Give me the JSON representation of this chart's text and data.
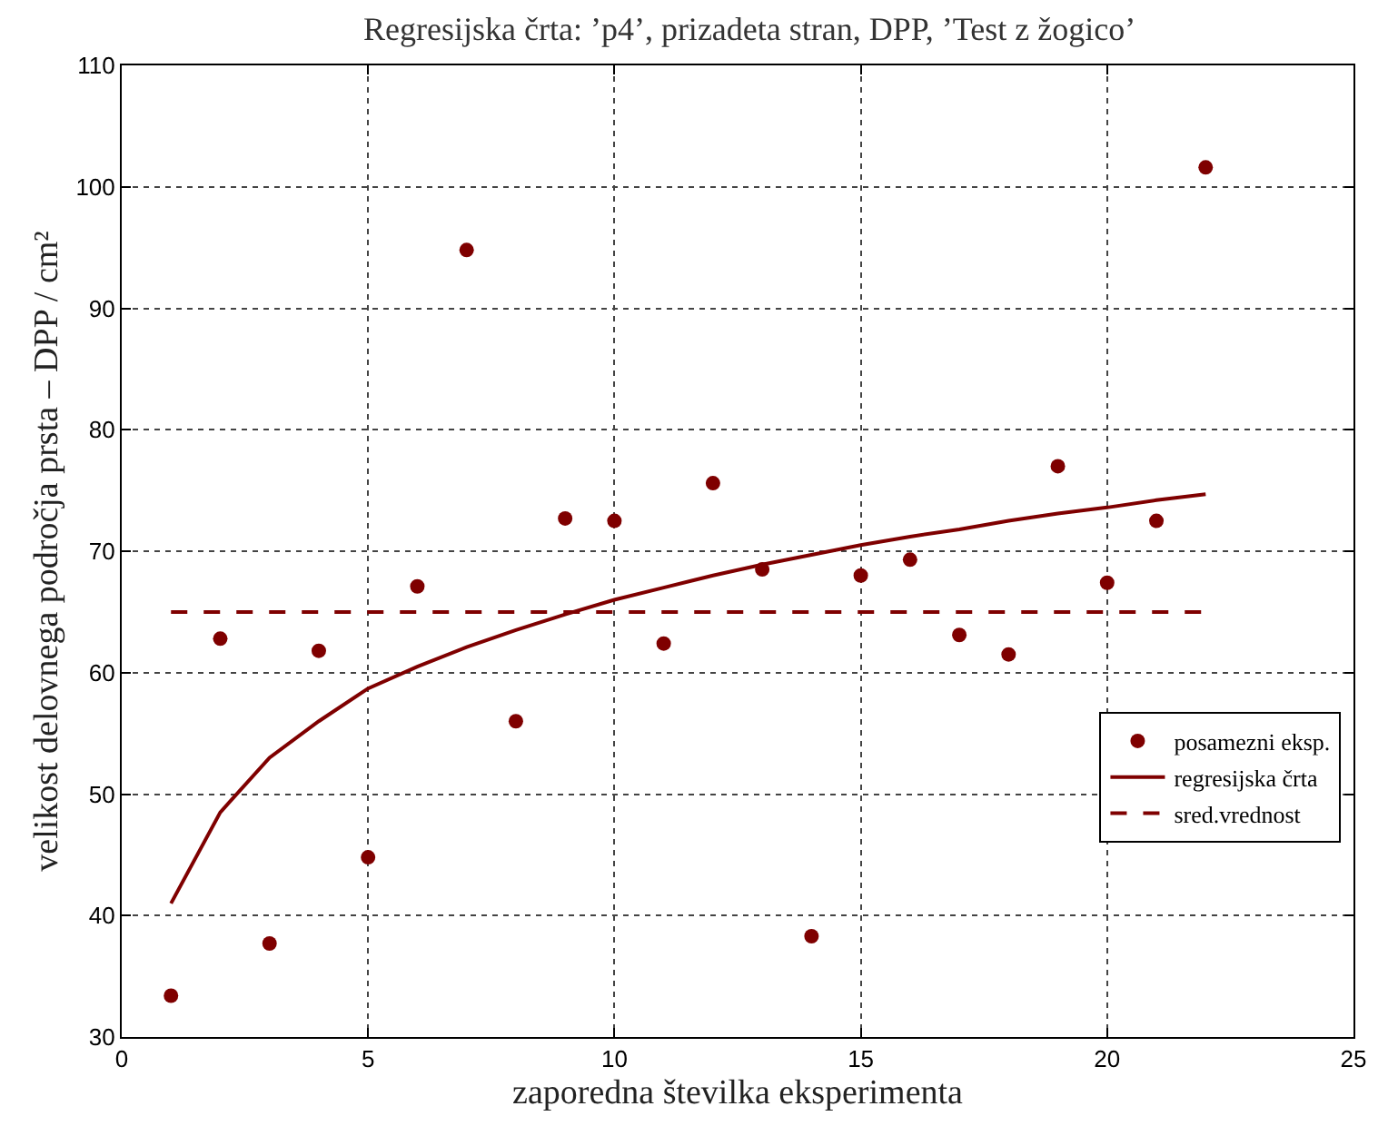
{
  "chart_data": {
    "type": "scatter",
    "title": "Regresijska črta: ’p4’, prizadeta stran, DPP, ’Test z žogico’",
    "xlabel": "zaporedna številka eksperimenta",
    "ylabel": "velikost delovnega področja prsta – DPP / cm²",
    "x": [
      1,
      2,
      3,
      4,
      5,
      6,
      7,
      8,
      9,
      10,
      11,
      12,
      13,
      14,
      15,
      16,
      17,
      18,
      19,
      20,
      21,
      22
    ],
    "series": [
      {
        "name": "posamezni eksp.",
        "type": "scatter",
        "marker": "circle",
        "color": "#7f0000",
        "values": [
          33.4,
          62.8,
          37.7,
          61.8,
          44.8,
          67.1,
          94.8,
          56.0,
          72.7,
          72.5,
          62.4,
          75.6,
          68.5,
          38.3,
          68.0,
          69.3,
          63.1,
          61.5,
          77.0,
          67.4,
          72.5,
          101.6
        ]
      },
      {
        "name": "regresijska črta",
        "type": "line",
        "marker": "none",
        "line_style": "solid",
        "color": "#7f0000",
        "values": [
          41,
          48.5,
          53,
          56,
          58.7,
          60.5,
          62.1,
          63.5,
          64.8,
          66,
          67,
          68,
          68.9,
          69.7,
          70.5,
          71.2,
          71.8,
          72.5,
          73.1,
          73.6,
          74.2,
          74.7
        ]
      },
      {
        "name": "sred.vrednost",
        "type": "line",
        "marker": "none",
        "line_style": "dashed",
        "color": "#7f0000",
        "values": [
          65,
          65,
          65,
          65,
          65,
          65,
          65,
          65,
          65,
          65,
          65,
          65,
          65,
          65,
          65,
          65,
          65,
          65,
          65,
          65,
          65,
          65
        ]
      }
    ],
    "xlim": [
      0,
      25
    ],
    "xticks": [
      0,
      5,
      10,
      15,
      20,
      25
    ],
    "ylim": [
      30,
      110
    ],
    "yticks": [
      30,
      40,
      50,
      60,
      70,
      80,
      90,
      100,
      110
    ],
    "grid": true,
    "legend": "bottom right"
  }
}
